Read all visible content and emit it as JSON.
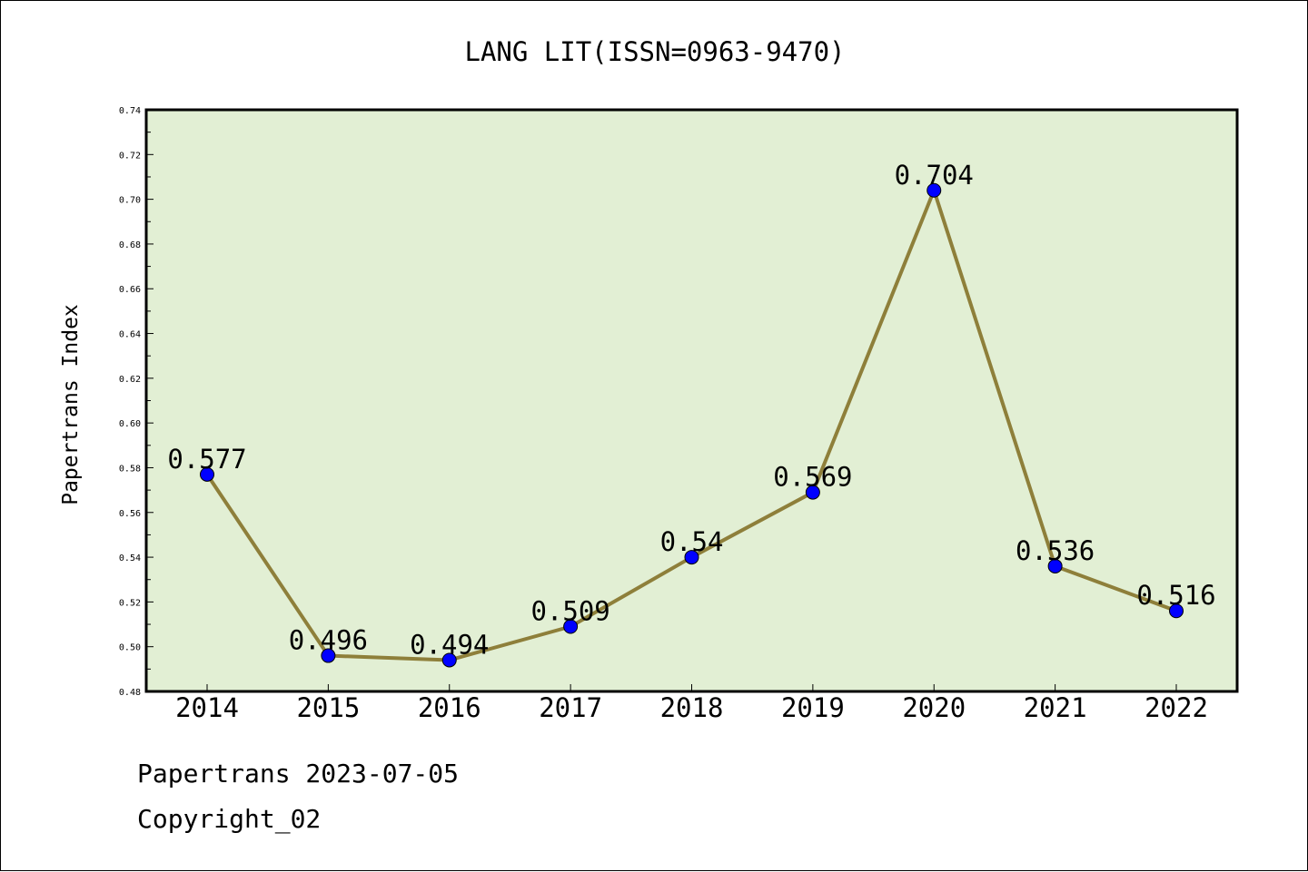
{
  "chart_data": {
    "type": "line",
    "title": "LANG LIT(ISSN=0963-9470)",
    "xlabel": "",
    "ylabel": "Papertrans Index",
    "categories": [
      "2014",
      "2015",
      "2016",
      "2017",
      "2018",
      "2019",
      "2020",
      "2021",
      "2022"
    ],
    "values": [
      0.577,
      0.496,
      0.494,
      0.509,
      0.54,
      0.569,
      0.704,
      0.536,
      0.516
    ],
    "data_labels": [
      "0.577",
      "0.496",
      "0.494",
      "0.509",
      "0.54",
      "0.569",
      "0.704",
      "0.536",
      "0.516"
    ],
    "ylim": [
      0.48,
      0.74
    ],
    "yticks": [
      "0.48",
      "0.50",
      "0.52",
      "0.54",
      "0.56",
      "0.58",
      "0.60",
      "0.62",
      "0.64",
      "0.66",
      "0.68",
      "0.70",
      "0.72",
      "0.74"
    ],
    "grid": false,
    "legend": "none",
    "colors": {
      "plot_background": "#e2efd4",
      "line": "#8e7f3a",
      "marker": "#0000ff"
    }
  },
  "footer": {
    "source": "Papertrans 2023-07-05",
    "copyright": "Copyright_02"
  }
}
